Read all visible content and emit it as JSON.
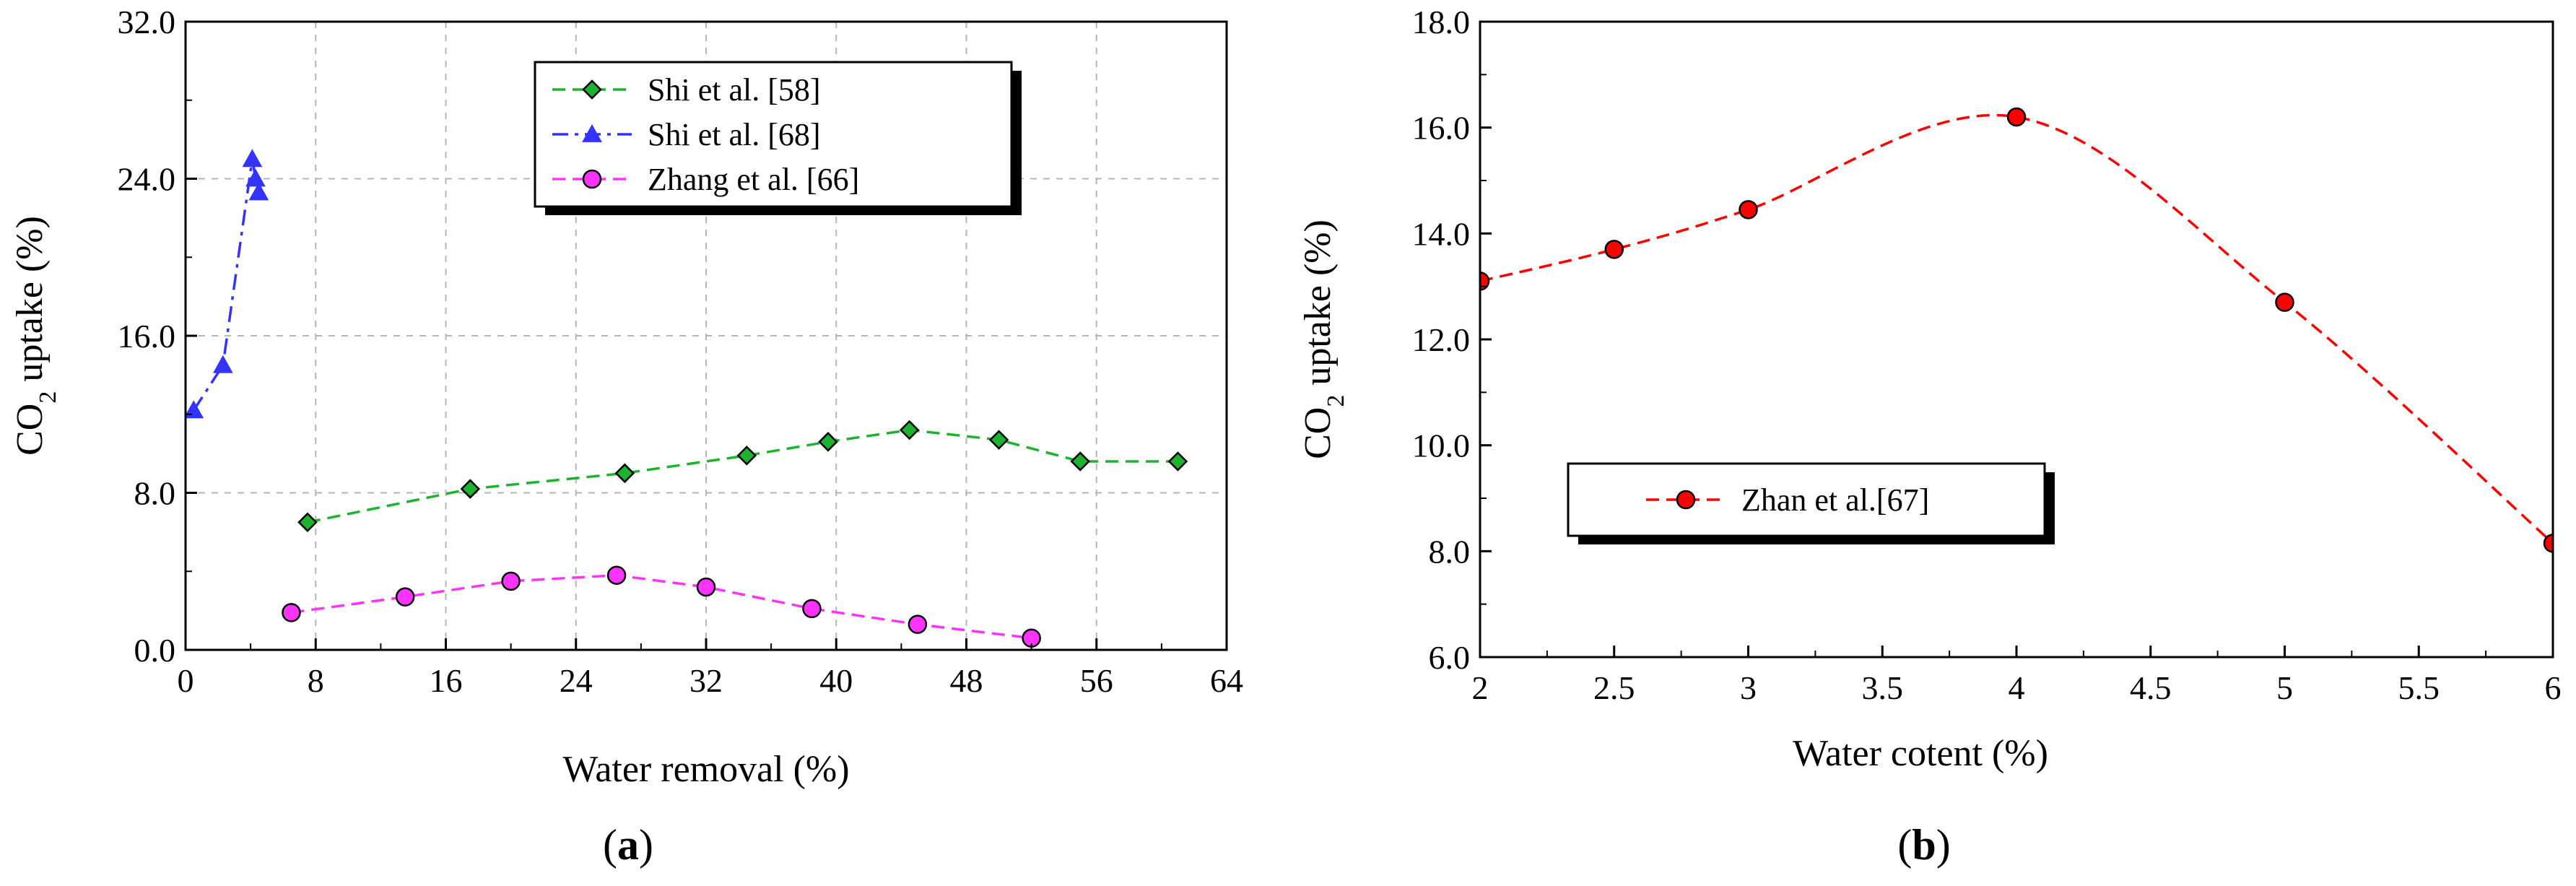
{
  "chart_data": [
    {
      "type": "line",
      "panel_label": "a",
      "xlabel": "Water removal (%)",
      "ylabel_prefix": "CO",
      "ylabel_sub": "2",
      "ylabel_suffix": " uptake (%)",
      "xlim": [
        0,
        64
      ],
      "ylim": [
        0,
        32
      ],
      "x_ticks": [
        "0",
        "8",
        "16",
        "24",
        "32",
        "40",
        "48",
        "56",
        "64"
      ],
      "y_ticks": [
        "0.0",
        "8.0",
        "16.0",
        "24.0",
        "32.0"
      ],
      "grid": true,
      "legend_position": "top-center",
      "series": [
        {
          "name": "Shi et al. [58]",
          "color": "#1db32f",
          "marker": "diamond",
          "line_style": "dashed",
          "x": [
            7.5,
            17.5,
            27,
            34.5,
            39.5,
            44.5,
            50,
            55,
            61
          ],
          "y": [
            6.5,
            8.2,
            9.0,
            9.9,
            10.6,
            11.2,
            10.7,
            9.6,
            9.6
          ]
        },
        {
          "name": "Shi et al. [68]",
          "color": "#3333ff",
          "marker": "triangle",
          "line_style": "dashdot",
          "x": [
            0.5,
            2.3,
            4.1,
            4.3,
            4.5
          ],
          "y": [
            12.2,
            14.5,
            25.0,
            24.0,
            23.3
          ]
        },
        {
          "name": "Zhang et al. [66]",
          "color": "#ff33ff",
          "marker": "circle",
          "line_style": "dashed",
          "x": [
            6.5,
            13.5,
            20,
            26.5,
            32,
            38.5,
            45,
            52
          ],
          "y": [
            1.9,
            2.7,
            3.5,
            3.8,
            3.2,
            2.1,
            1.3,
            0.6
          ]
        }
      ]
    },
    {
      "type": "line",
      "panel_label": "b",
      "xlabel": "Water cotent (%)",
      "ylabel_prefix": "CO",
      "ylabel_sub": "2",
      "ylabel_suffix": " uptake (%)",
      "xlim": [
        2,
        6
      ],
      "ylim": [
        6,
        18
      ],
      "x_ticks": [
        "2",
        "2.5",
        "3",
        "3.5",
        "4",
        "4.5",
        "5",
        "5.5",
        "6"
      ],
      "y_ticks": [
        "6.0",
        "8.0",
        "10.0",
        "12.0",
        "14.0",
        "16.0",
        "18.0"
      ],
      "grid": false,
      "legend_position": "center-left",
      "series": [
        {
          "name": "Zhan et al.[67]",
          "color": "#ff0000",
          "marker": "circle",
          "line_style": "dashed",
          "x": [
            2,
            2.5,
            3,
            4,
            5,
            6
          ],
          "y": [
            13.1,
            13.7,
            14.45,
            16.2,
            12.7,
            8.15
          ]
        }
      ]
    }
  ]
}
